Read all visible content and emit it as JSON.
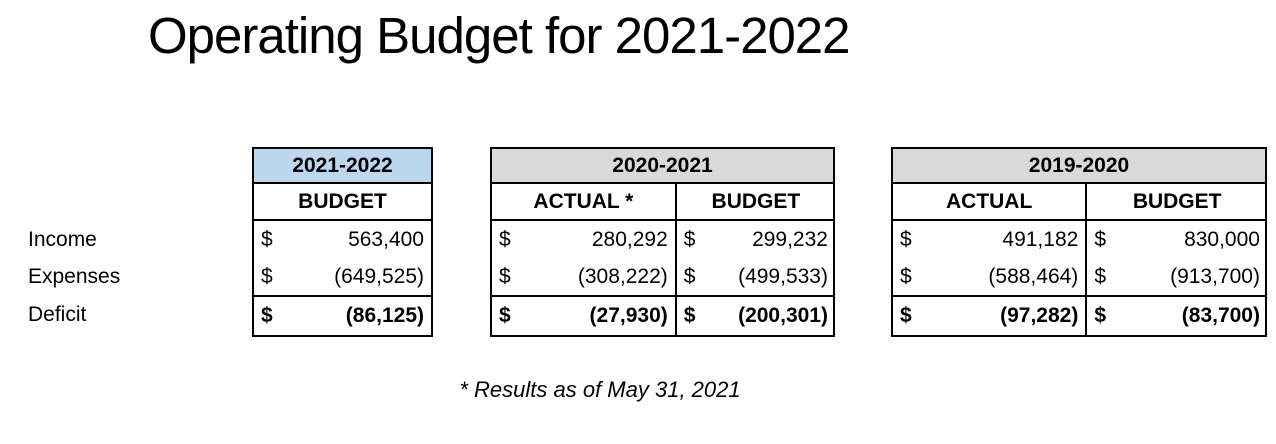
{
  "slide": {
    "title": "Operating Budget for 2021-2022",
    "footnote": "* Results as of May 31, 2021"
  },
  "currency": "$",
  "row_labels": {
    "income": "Income",
    "expenses": "Expenses",
    "deficit": "Deficit"
  },
  "colors": {
    "current_year_header_bg": "#BDD7EE",
    "prior_year_header_bg": "#D9D9D9",
    "border": "#000000",
    "text": "#000000",
    "background": "#FFFFFF"
  },
  "tables": [
    {
      "year": "2021-2022",
      "columns": [
        {
          "header": "BUDGET",
          "income": "563,400",
          "expenses": "(649,525)",
          "deficit": "(86,125)"
        }
      ]
    },
    {
      "year": "2020-2021",
      "columns": [
        {
          "header": "ACTUAL *",
          "income": "280,292",
          "expenses": "(308,222)",
          "deficit": "(27,930)"
        },
        {
          "header": "BUDGET",
          "income": "299,232",
          "expenses": "(499,533)",
          "deficit": "(200,301)"
        }
      ]
    },
    {
      "year": "2019-2020",
      "columns": [
        {
          "header": "ACTUAL",
          "income": "491,182",
          "expenses": "(588,464)",
          "deficit": "(97,282)"
        },
        {
          "header": "BUDGET",
          "income": "830,000",
          "expenses": "(913,700)",
          "deficit": "(83,700)"
        }
      ]
    }
  ]
}
